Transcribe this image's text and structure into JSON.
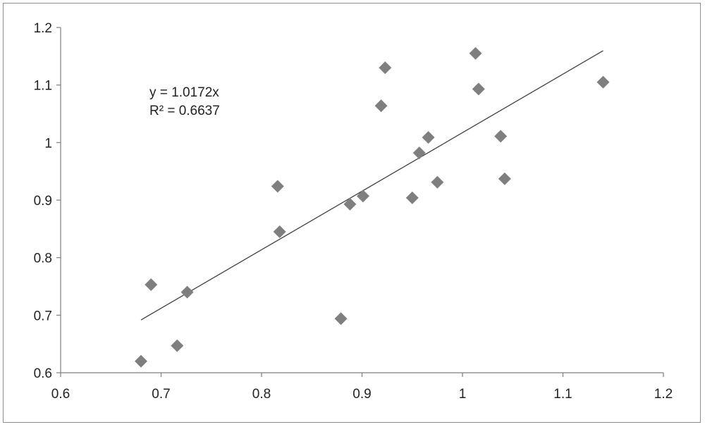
{
  "chart_data": {
    "type": "scatter",
    "title": "",
    "xlabel": "",
    "ylabel": "",
    "xlim": [
      0.6,
      1.2
    ],
    "ylim": [
      0.6,
      1.2
    ],
    "xticks": [
      0.6,
      0.7,
      0.8,
      0.9,
      1.0,
      1.1,
      1.2
    ],
    "yticks": [
      0.6,
      0.7,
      0.8,
      0.9,
      1.0,
      1.1,
      1.2
    ],
    "xtick_labels": [
      "0.6",
      "0.7",
      "0.8",
      "0.9",
      "1",
      "1.1",
      "1.2"
    ],
    "ytick_labels": [
      "0.6",
      "0.7",
      "0.8",
      "0.9",
      "1",
      "1.1",
      "1.2"
    ],
    "grid": false,
    "legend": "none",
    "marker": "diamond",
    "marker_color": "#7f7f7f",
    "line_color": "#404040",
    "points": [
      {
        "x": 0.68,
        "y": 0.62
      },
      {
        "x": 0.69,
        "y": 0.753
      },
      {
        "x": 0.716,
        "y": 0.647
      },
      {
        "x": 0.726,
        "y": 0.74
      },
      {
        "x": 0.816,
        "y": 0.924
      },
      {
        "x": 0.818,
        "y": 0.845
      },
      {
        "x": 0.879,
        "y": 0.694
      },
      {
        "x": 0.888,
        "y": 0.893
      },
      {
        "x": 0.901,
        "y": 0.907
      },
      {
        "x": 0.919,
        "y": 1.064
      },
      {
        "x": 0.923,
        "y": 1.13
      },
      {
        "x": 0.95,
        "y": 0.904
      },
      {
        "x": 0.957,
        "y": 0.982
      },
      {
        "x": 0.966,
        "y": 1.009
      },
      {
        "x": 0.975,
        "y": 0.931
      },
      {
        "x": 1.013,
        "y": 1.155
      },
      {
        "x": 1.016,
        "y": 1.093
      },
      {
        "x": 1.038,
        "y": 1.011
      },
      {
        "x": 1.042,
        "y": 0.937
      },
      {
        "x": 1.14,
        "y": 1.105
      }
    ],
    "trendline": {
      "slope": 1.0172,
      "x_range": [
        0.68,
        1.14
      ],
      "equation": "y = 1.0172x",
      "r_squared_label": "R² = 0.6637"
    }
  }
}
